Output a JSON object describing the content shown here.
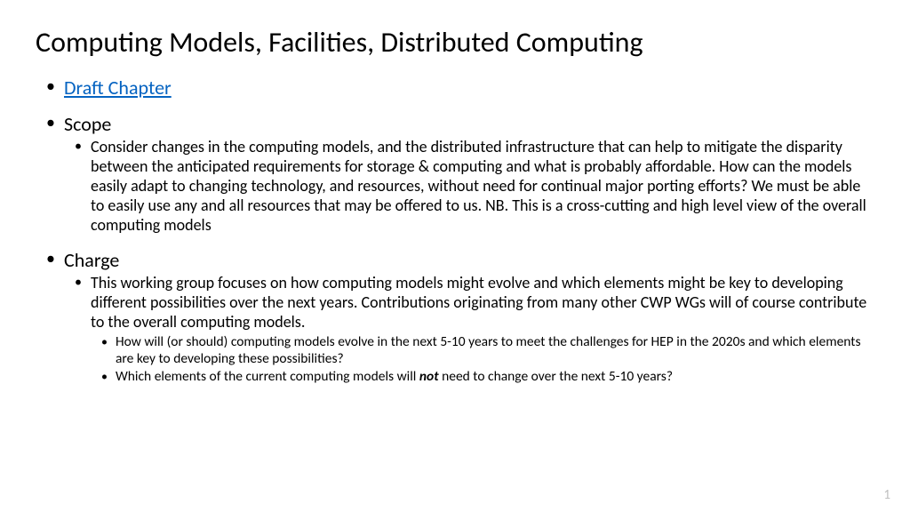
{
  "title": "Computing Models, Facilities, Distributed Computing",
  "bullets": {
    "draft": "Draft Chapter",
    "scope": {
      "label": "Scope",
      "text": "Consider changes in the computing models, and the distributed infrastructure that can help to mitigate the disparity between the anticipated requirements for storage & computing and what is probably affordable.  How can the models easily adapt to changing technology, and resources, without need for continual major porting efforts?  We must be able to easily use any and all resources that may be offered to us.  NB. This is a cross-cutting and high level view of the overall computing models"
    },
    "charge": {
      "label": "Charge",
      "text": "This working group focuses on how computing models might evolve and which elements might be key to developing different possibilities over the next years. Contributions originating from many other CWP WGs will of course contribute to the overall computing models.",
      "sub1": "How will (or should) computing models evolve in the next 5-10 years to meet the challenges for HEP in the 2020s and which elements are key to developing these possibilities?",
      "sub2_a": "Which elements of the current computing models will ",
      "sub2_em": "not",
      "sub2_b": " need to change over the next 5-10 years?"
    }
  },
  "pagenum": "1",
  "colors": {
    "link": "#0563c1",
    "text": "#000000",
    "pagenum": "#bfbfbf",
    "background": "#ffffff"
  },
  "fonts": {
    "title_size": 32,
    "lvl1_size": 22,
    "lvl2_size": 18,
    "lvl3_size": 15.5
  }
}
